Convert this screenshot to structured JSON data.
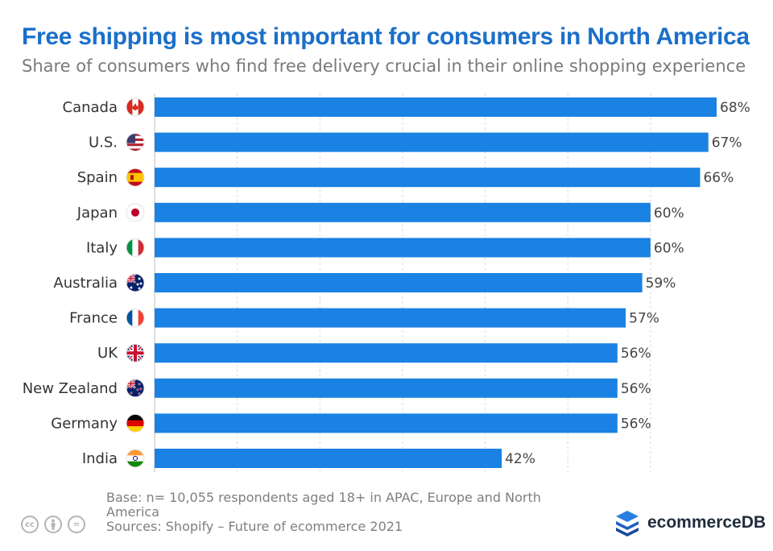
{
  "title": "Free shipping is most important for consumers in North America",
  "subtitle": "Share of consumers who find free delivery crucial in their online shopping experience",
  "colors": {
    "bar": "#1a82e2",
    "title": "#1b6fc9",
    "grid": "#d9d9d9",
    "brand": "#1f5fbf"
  },
  "chart_data": {
    "type": "bar",
    "orientation": "horizontal",
    "categories": [
      "Canada",
      "U.S.",
      "Spain",
      "Japan",
      "Italy",
      "Australia",
      "France",
      "UK",
      "New Zealand",
      "Germany",
      "India"
    ],
    "flags": [
      "canada-flag-icon",
      "us-flag-icon",
      "spain-flag-icon",
      "japan-flag-icon",
      "italy-flag-icon",
      "australia-flag-icon",
      "france-flag-icon",
      "uk-flag-icon",
      "new-zealand-flag-icon",
      "germany-flag-icon",
      "india-flag-icon"
    ],
    "values": [
      68,
      67,
      66,
      60,
      60,
      59,
      57,
      56,
      56,
      56,
      42
    ],
    "value_labels": [
      "68%",
      "67%",
      "66%",
      "60%",
      "60%",
      "59%",
      "57%",
      "56%",
      "56%",
      "56%",
      "42%"
    ],
    "xlim": [
      0,
      68
    ],
    "grid": true,
    "unit": "%"
  },
  "footer": {
    "base": "Base: n= 10,055 respondents aged 18+ in APAC, Europe and North America",
    "sources": "Sources: Shopify – Future of ecommerce 2021"
  },
  "license_icons": [
    "cc-icon",
    "by-icon",
    "nd-icon"
  ],
  "license_marks": [
    "cc",
    "",
    "="
  ],
  "brand": {
    "name": "ecommerceDB"
  }
}
